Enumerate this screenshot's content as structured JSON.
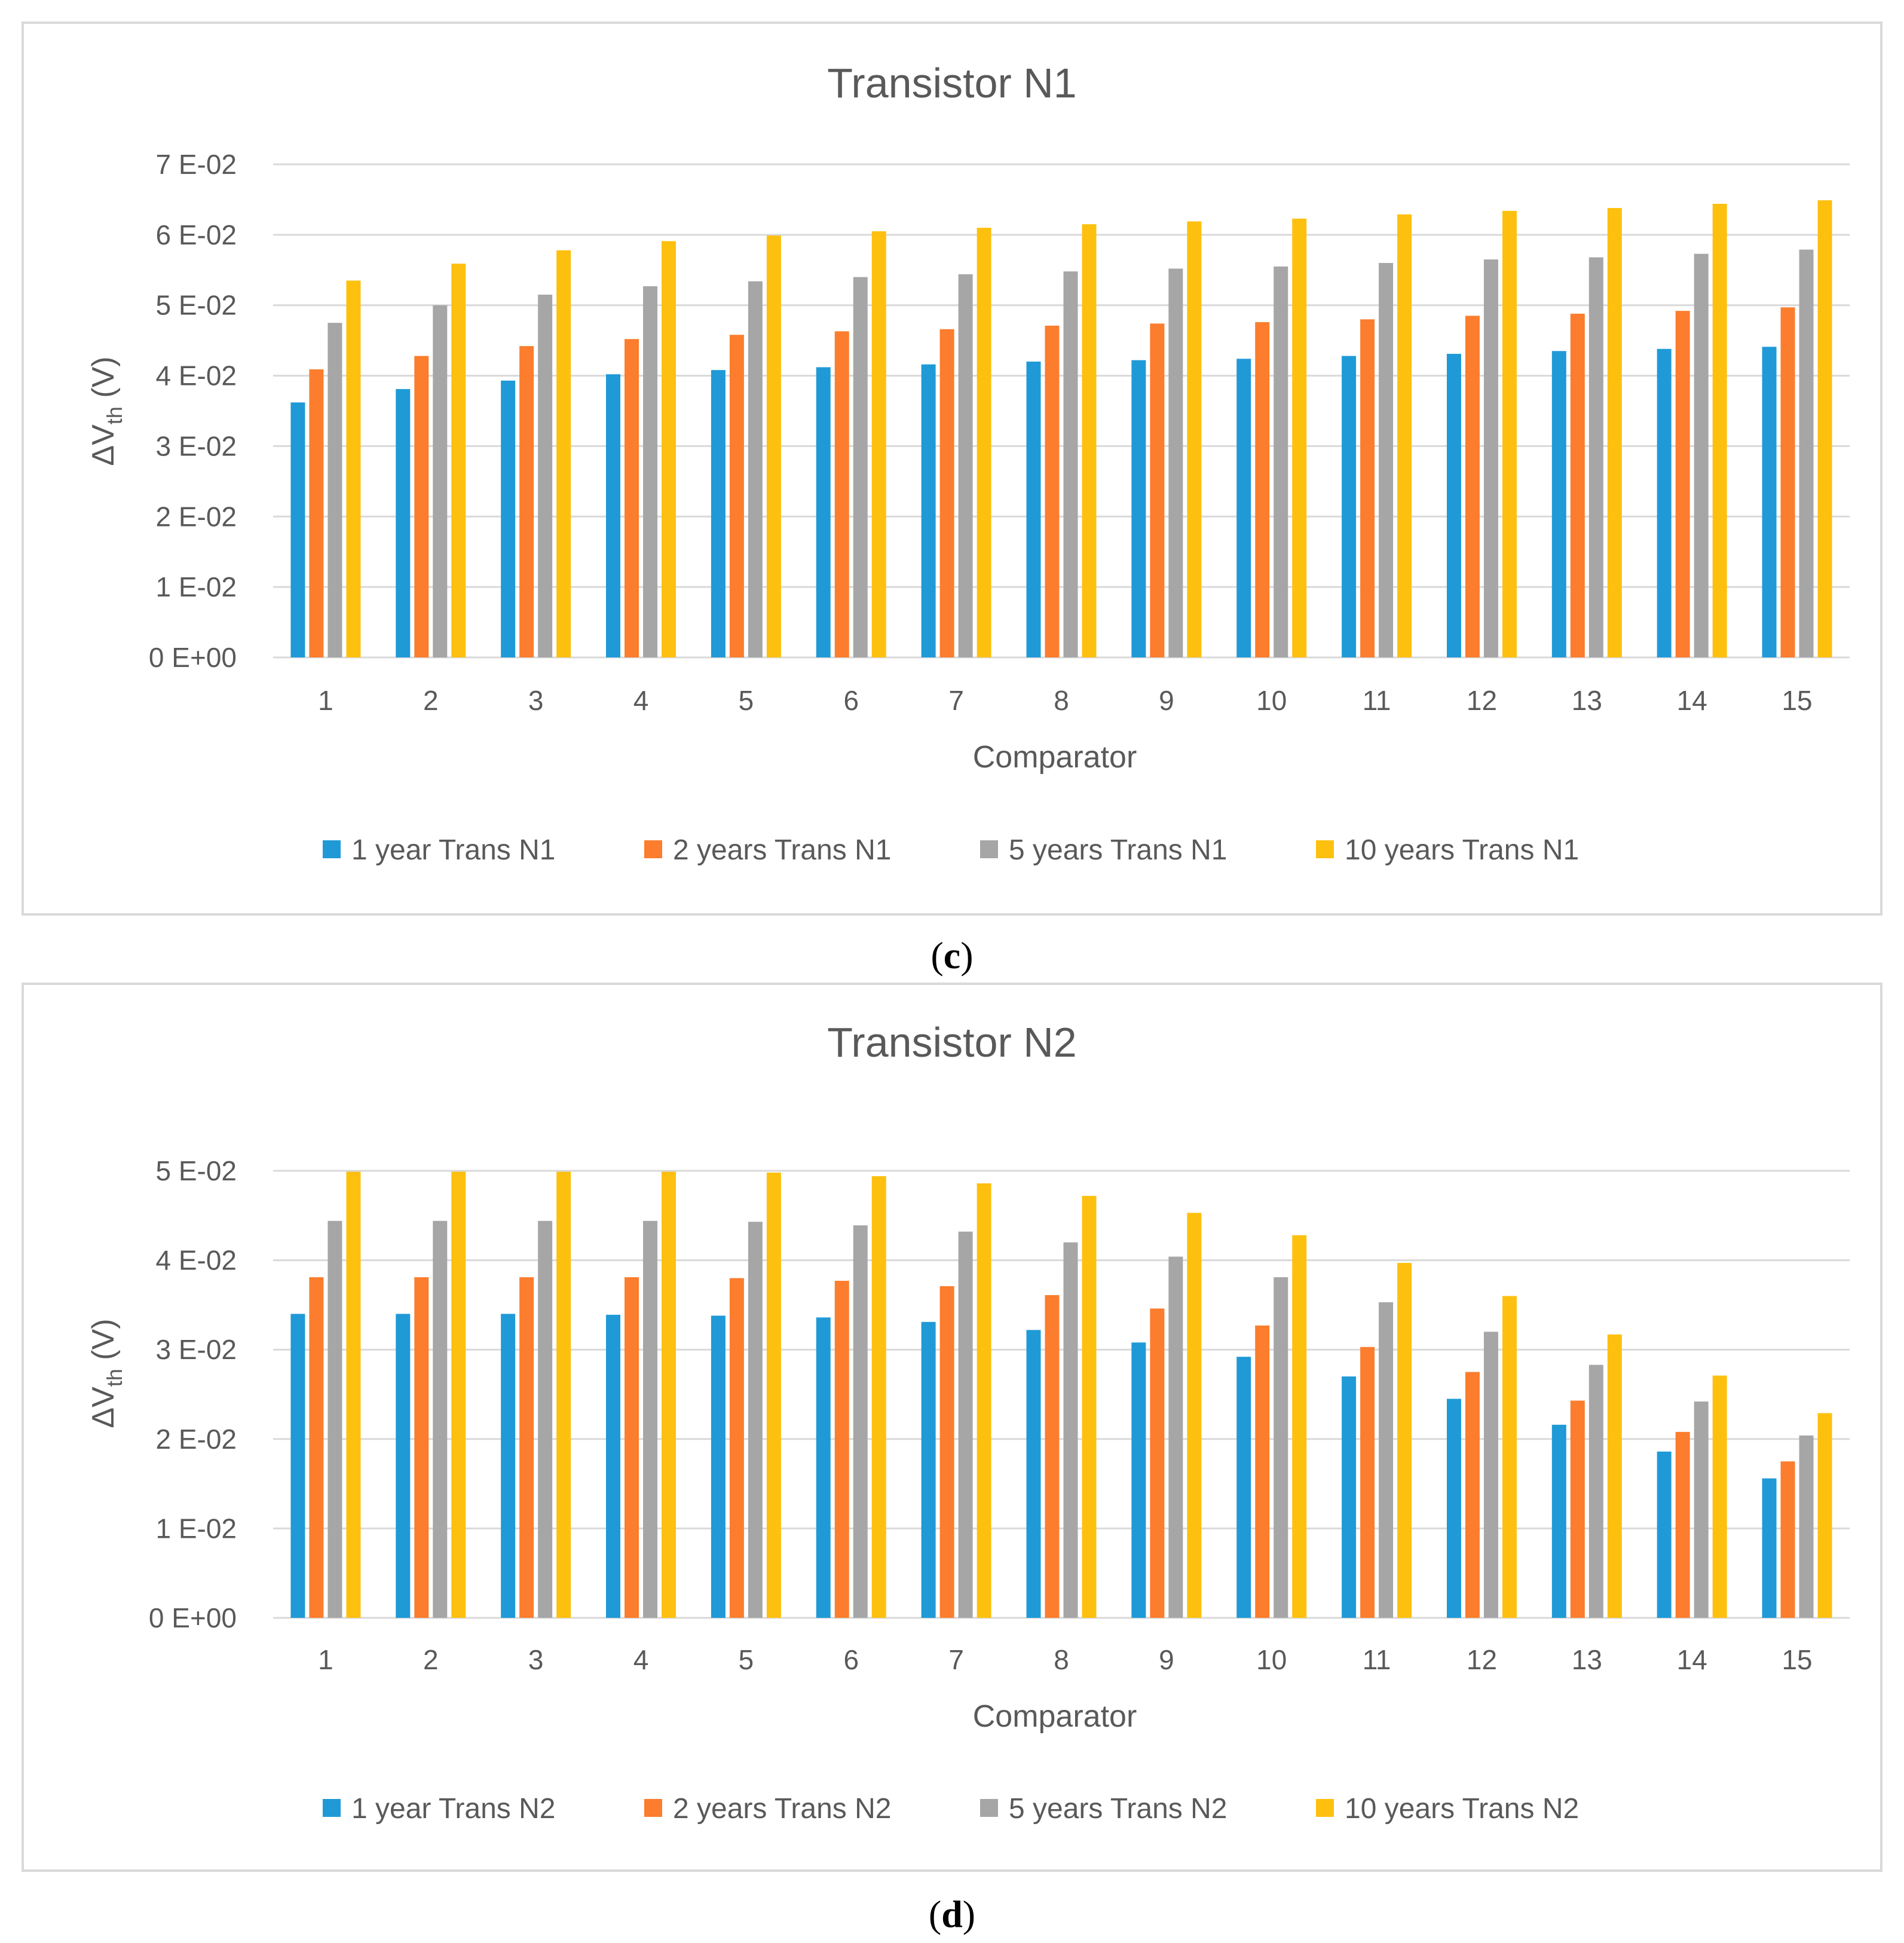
{
  "colors": {
    "series": [
      "#1f9ad7",
      "#fb7d2d",
      "#a6a6a6",
      "#fec00e"
    ],
    "grid": "#d9d9d9",
    "frame": "#d9d9d9",
    "text": "#595959"
  },
  "chart_data": [
    {
      "type": "bar",
      "title": "Transistor N1",
      "xlabel": "Comparator",
      "ylabel_main": "ΔV",
      "ylabel_sub": "th",
      "ylabel_unit": " (V)",
      "ylim": [
        0,
        0.07
      ],
      "yticks": [
        0,
        0.01,
        0.02,
        0.03,
        0.04,
        0.05,
        0.06,
        0.07
      ],
      "ytick_labels": [
        "0 E+00",
        "1 E-02",
        "2 E-02",
        "3 E-02",
        "4 E-02",
        "5 E-02",
        "6 E-02",
        "7 E-02"
      ],
      "grid": true,
      "legend_position": "bottom",
      "categories": [
        "1",
        "2",
        "3",
        "4",
        "5",
        "6",
        "7",
        "8",
        "9",
        "10",
        "11",
        "12",
        "13",
        "14",
        "15"
      ],
      "series": [
        {
          "name": "1 year Trans N1",
          "values": [
            0.0362,
            0.0381,
            0.0393,
            0.0402,
            0.0408,
            0.0412,
            0.0416,
            0.042,
            0.0422,
            0.0424,
            0.0428,
            0.0431,
            0.0435,
            0.0438,
            0.0441
          ]
        },
        {
          "name": "2 years Trans N1",
          "values": [
            0.0409,
            0.0428,
            0.0442,
            0.0452,
            0.0458,
            0.0463,
            0.0466,
            0.0471,
            0.0474,
            0.0476,
            0.048,
            0.0485,
            0.0488,
            0.0492,
            0.0497
          ]
        },
        {
          "name": "5 years Trans N1",
          "values": [
            0.0475,
            0.05,
            0.0515,
            0.0527,
            0.0534,
            0.054,
            0.0544,
            0.0548,
            0.0552,
            0.0555,
            0.056,
            0.0565,
            0.0568,
            0.0573,
            0.0579
          ]
        },
        {
          "name": "10 years Trans N1",
          "values": [
            0.0535,
            0.0559,
            0.0578,
            0.0591,
            0.0599,
            0.0605,
            0.061,
            0.0615,
            0.0619,
            0.0623,
            0.0629,
            0.0634,
            0.0638,
            0.0644,
            0.0649
          ]
        }
      ],
      "caption": "c"
    },
    {
      "type": "bar",
      "title": "Transistor N2",
      "xlabel": "Comparator",
      "ylabel_main": "ΔV",
      "ylabel_sub": "th",
      "ylabel_unit": " (V)",
      "ylim": [
        0,
        0.05
      ],
      "yticks": [
        0,
        0.01,
        0.02,
        0.03,
        0.04,
        0.05
      ],
      "ytick_labels": [
        "0 E+00",
        "1 E-02",
        "2 E-02",
        "3 E-02",
        "4 E-02",
        "5 E-02"
      ],
      "grid": true,
      "legend_position": "bottom",
      "categories": [
        "1",
        "2",
        "3",
        "4",
        "5",
        "6",
        "7",
        "8",
        "9",
        "10",
        "11",
        "12",
        "13",
        "14",
        "15"
      ],
      "series": [
        {
          "name": "1 year Trans N2",
          "values": [
            0.034,
            0.034,
            0.034,
            0.0339,
            0.0338,
            0.0336,
            0.0331,
            0.0322,
            0.0308,
            0.0292,
            0.027,
            0.0245,
            0.0216,
            0.0186,
            0.0156
          ]
        },
        {
          "name": "2 years Trans N2",
          "values": [
            0.0381,
            0.0381,
            0.0381,
            0.0381,
            0.038,
            0.0377,
            0.0371,
            0.0361,
            0.0346,
            0.0327,
            0.0303,
            0.0275,
            0.0243,
            0.0208,
            0.0175
          ]
        },
        {
          "name": "5 years Trans N2",
          "values": [
            0.0444,
            0.0444,
            0.0444,
            0.0444,
            0.0443,
            0.0439,
            0.0432,
            0.042,
            0.0404,
            0.0381,
            0.0353,
            0.032,
            0.0283,
            0.0242,
            0.0204
          ]
        },
        {
          "name": "10 years Trans N2",
          "values": [
            0.0499,
            0.0499,
            0.0499,
            0.0499,
            0.0498,
            0.0494,
            0.0486,
            0.0472,
            0.0453,
            0.0428,
            0.0397,
            0.036,
            0.0317,
            0.0271,
            0.0229
          ]
        }
      ],
      "caption": "d"
    }
  ]
}
